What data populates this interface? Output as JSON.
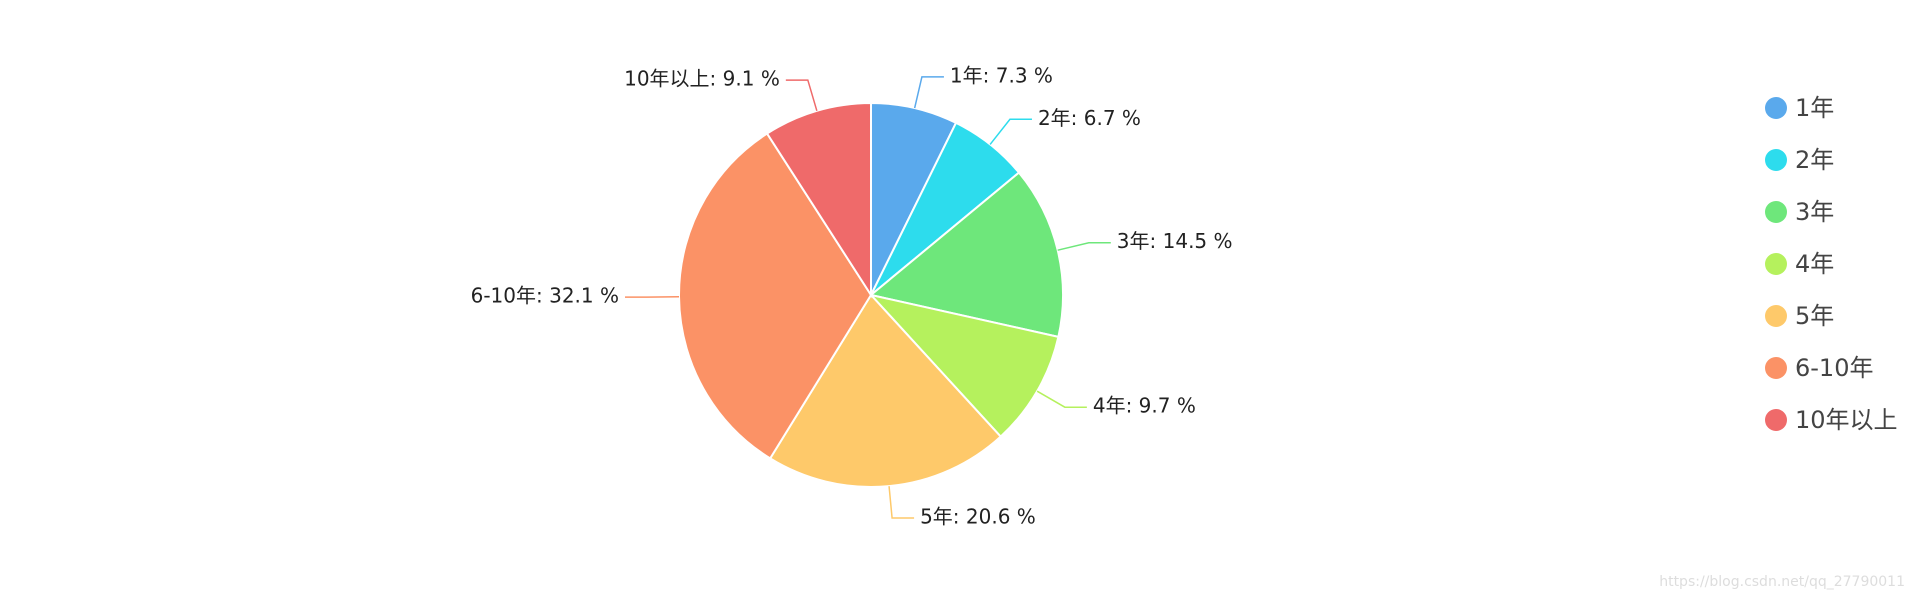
{
  "chart_data": {
    "type": "pie",
    "categories": [
      "1年",
      "2年",
      "3年",
      "4年",
      "5年",
      "6-10年",
      "10年以上"
    ],
    "values": [
      7.3,
      6.7,
      14.5,
      9.7,
      20.6,
      32.1,
      9.1
    ],
    "value_labels": [
      "1年: 7.3 %",
      "2年: 6.7 %",
      "3年: 14.5 %",
      "4年: 9.7 %",
      "5年: 20.6 %",
      "6-10年: 32.1 %",
      "10年以上: 9.1 %"
    ],
    "colors": [
      "#5aa9ec",
      "#2ddced",
      "#6ee77b",
      "#b5f15d",
      "#fec96a",
      "#fb9266",
      "#ef6a6a"
    ],
    "legend": "right",
    "watermark": "https://blog.csdn.net/qq_27790011"
  }
}
